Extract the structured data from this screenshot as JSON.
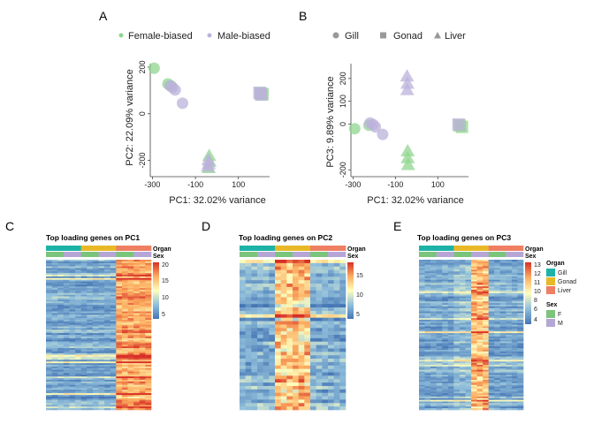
{
  "colors": {
    "female": "#8fd68f",
    "male": "#bcb2db",
    "gill": "#1db2a8",
    "gonad": "#e8b827",
    "liver": "#ee7f62",
    "sex_f": "#7bc47b",
    "sex_m": "#b6a6d6",
    "heat_low": "#4a77b4",
    "heat_mid": "#fefebd",
    "heat_high": "#d73027"
  },
  "panels": {
    "a_label": "A",
    "b_label": "B",
    "c_label": "C",
    "d_label": "D",
    "e_label": "E"
  },
  "legend_a": {
    "items": [
      "Female-biased",
      "Male-biased"
    ]
  },
  "legend_b": {
    "items": [
      "Gill",
      "Gonad",
      "Liver"
    ]
  },
  "heatmaps": {
    "c_title": "Top loading genes on PC1",
    "d_title": "Top loading genes on PC2",
    "e_title": "Top loading genes on PC3",
    "ann_organ": "Organ",
    "ann_sex": "Sex",
    "c_scale": [
      "20",
      "15",
      "10",
      "5"
    ],
    "d_scale": [
      "15",
      "10",
      "5"
    ],
    "e_scale": [
      "13",
      "12",
      "11",
      "10",
      "8",
      "6",
      "4"
    ],
    "e_legend_organ_title": "Organ",
    "e_legend_organ_items": [
      "Gill",
      "Gonad",
      "Liver"
    ],
    "e_legend_sex_title": "Sex",
    "e_legend_sex_items": [
      "F",
      "M"
    ]
  },
  "chart_data": [
    {
      "type": "scatter",
      "panel": "A",
      "xlabel": "PC1: 32.02% variance",
      "ylabel": "PC2: 22.09% variance",
      "xticks": [
        -300,
        -100,
        100
      ],
      "yticks": [
        200,
        0,
        -200
      ],
      "xlim": [
        -310,
        245
      ],
      "ylim": [
        -270,
        215
      ],
      "series": [
        {
          "name": "Female-biased",
          "points": [
            {
              "x": -292,
              "y": 195,
              "shape": "circle"
            },
            {
              "x": -228,
              "y": 128,
              "shape": "circle"
            },
            {
              "x": -214,
              "y": 120,
              "shape": "circle"
            },
            {
              "x": 203,
              "y": 87,
              "shape": "square"
            },
            {
              "x": 212,
              "y": 84,
              "shape": "square"
            },
            {
              "x": -36,
              "y": -180,
              "shape": "triangle"
            },
            {
              "x": -34,
              "y": -205,
              "shape": "triangle"
            },
            {
              "x": -38,
              "y": -232,
              "shape": "triangle"
            }
          ]
        },
        {
          "name": "Male-biased",
          "points": [
            {
              "x": -218,
              "y": 120,
              "shape": "circle"
            },
            {
              "x": -206,
              "y": 112,
              "shape": "circle"
            },
            {
              "x": -194,
              "y": 102,
              "shape": "circle"
            },
            {
              "x": -160,
              "y": 45,
              "shape": "circle"
            },
            {
              "x": 198,
              "y": 90,
              "shape": "square"
            },
            {
              "x": 206,
              "y": 82,
              "shape": "square"
            },
            {
              "x": -40,
              "y": -198,
              "shape": "triangle"
            },
            {
              "x": -38,
              "y": -215,
              "shape": "triangle"
            },
            {
              "x": -42,
              "y": -226,
              "shape": "triangle"
            }
          ]
        }
      ]
    },
    {
      "type": "scatter",
      "panel": "B",
      "xlabel": "PC1: 32.02% variance",
      "ylabel": "PC3: 9.89% variance",
      "xticks": [
        -300,
        -100,
        100
      ],
      "yticks": [
        200,
        100,
        0,
        -200
      ],
      "xlim": [
        -310,
        245
      ],
      "ylim": [
        -230,
        265
      ],
      "series": [
        {
          "name": "Female-biased",
          "points": [
            {
              "x": -292,
              "y": -20,
              "shape": "circle"
            },
            {
              "x": -225,
              "y": -5,
              "shape": "circle"
            },
            {
              "x": 203,
              "y": -5,
              "shape": "square"
            },
            {
              "x": 214,
              "y": -12,
              "shape": "square"
            },
            {
              "x": -42,
              "y": -118,
              "shape": "triangle"
            },
            {
              "x": -42,
              "y": -148,
              "shape": "triangle"
            },
            {
              "x": -40,
              "y": -178,
              "shape": "triangle"
            }
          ]
        },
        {
          "name": "Male-biased",
          "points": [
            {
              "x": -220,
              "y": 5,
              "shape": "circle"
            },
            {
              "x": -205,
              "y": -2,
              "shape": "circle"
            },
            {
              "x": -195,
              "y": -12,
              "shape": "circle"
            },
            {
              "x": -160,
              "y": -45,
              "shape": "circle"
            },
            {
              "x": 198,
              "y": -2,
              "shape": "square"
            },
            {
              "x": -45,
              "y": 210,
              "shape": "triangle"
            },
            {
              "x": -43,
              "y": 178,
              "shape": "triangle"
            },
            {
              "x": -44,
              "y": 150,
              "shape": "triangle"
            }
          ]
        }
      ]
    }
  ]
}
